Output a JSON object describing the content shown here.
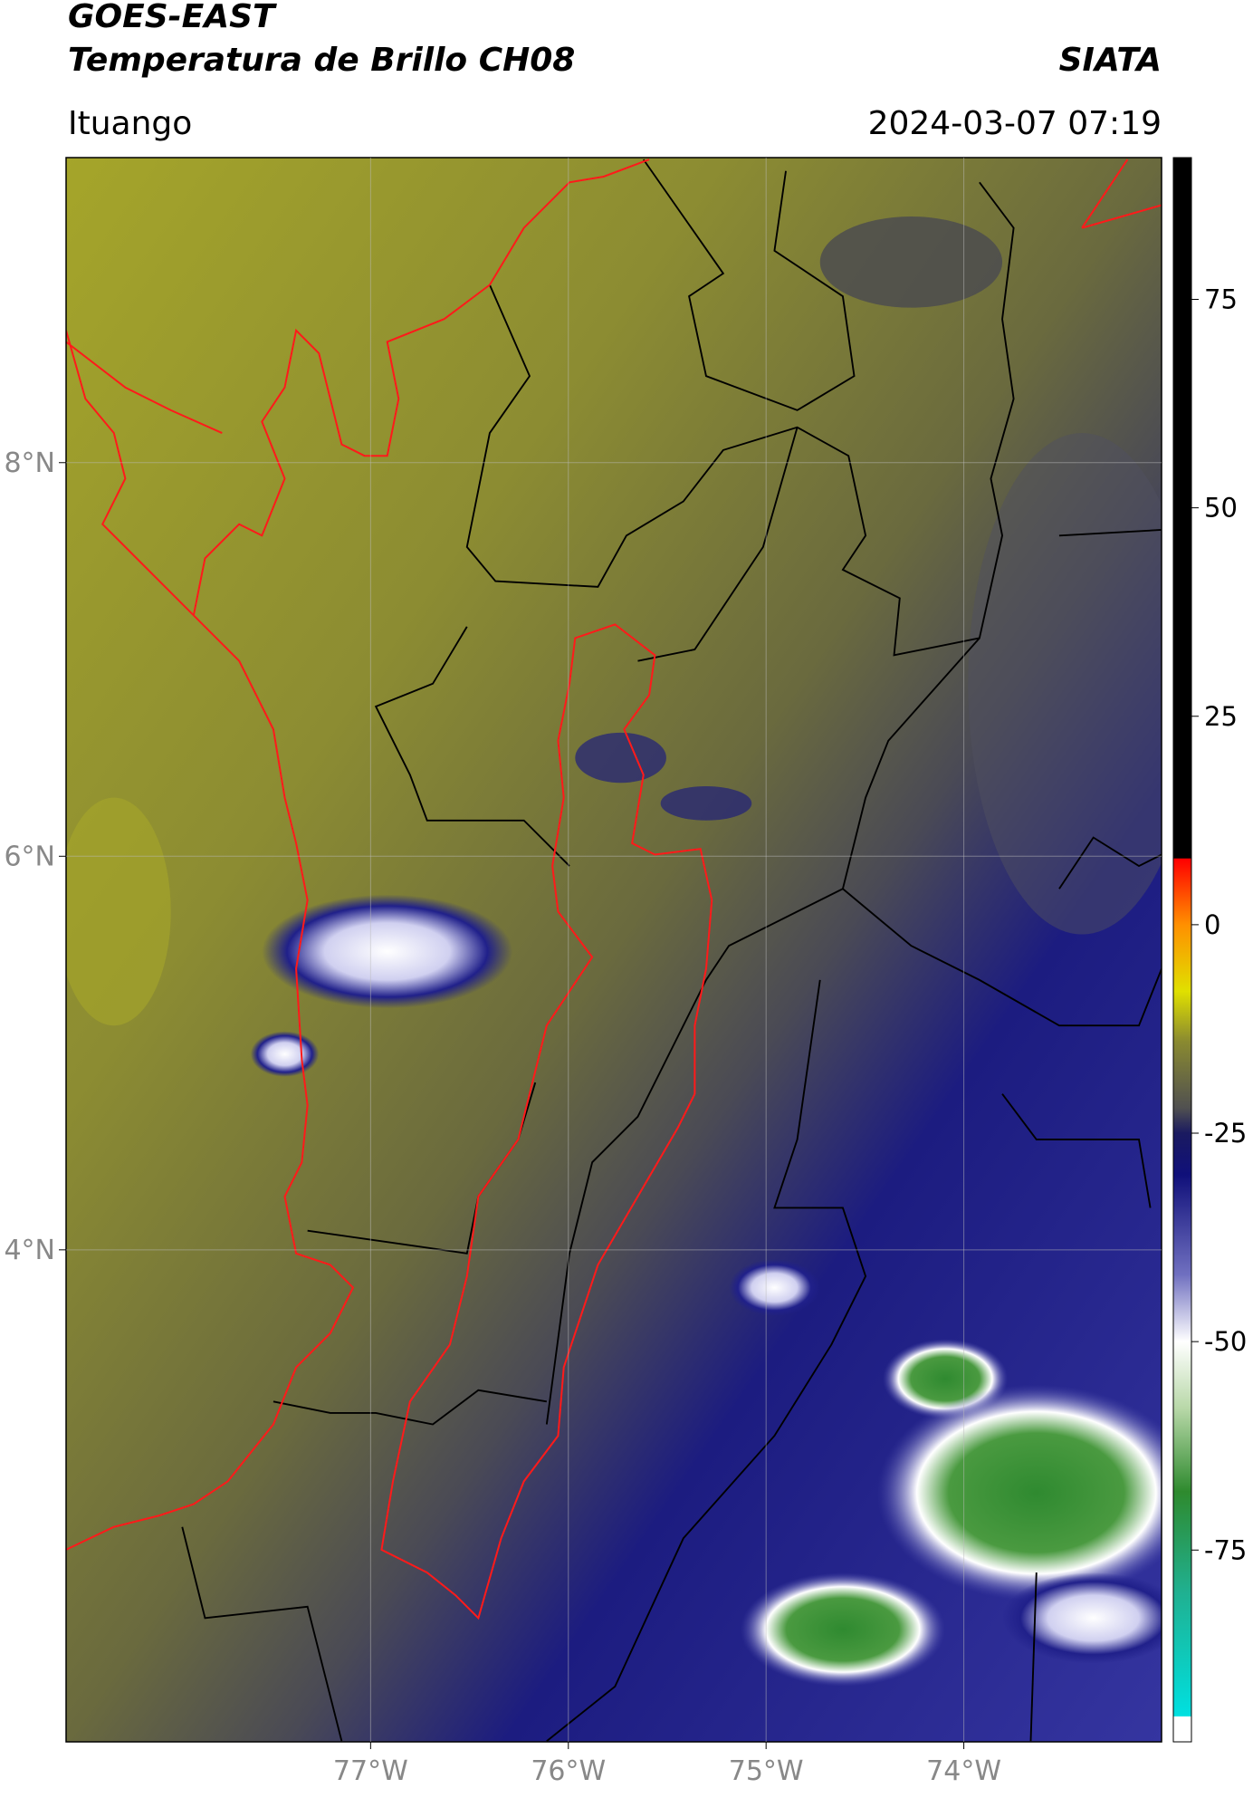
{
  "header": {
    "title": "GOES-EAST",
    "subtitle": "Temperatura de Brillo CH08",
    "brand": "SIATA",
    "location": "Ituango",
    "datetime": "2024-03-07 07:19"
  },
  "map": {
    "xlim": [
      -78.54,
      -73.0
    ],
    "ylim": [
      1.5,
      9.55
    ],
    "lat_ticks": [
      {
        "value": 8,
        "label": "8°N"
      },
      {
        "value": 6,
        "label": "6°N"
      },
      {
        "value": 4,
        "label": "4°N"
      }
    ],
    "lon_ticks": [
      {
        "value": -77,
        "label": "77°W"
      },
      {
        "value": -76,
        "label": "76°W"
      },
      {
        "value": -75,
        "label": "75°W"
      },
      {
        "value": -74,
        "label": "74°W"
      }
    ]
  },
  "colorbar": {
    "lim": [
      -98,
      92
    ],
    "ticks": [
      75,
      50,
      25,
      0,
      -25,
      -50,
      -75
    ],
    "colormap": [
      {
        "value": -98,
        "color": "#ffffff"
      },
      {
        "value": -95,
        "color": "#ffffff"
      },
      {
        "value": -94.9,
        "color": "#00e0e0"
      },
      {
        "value": -80,
        "color": "#20b090"
      },
      {
        "value": -68,
        "color": "#2e8a2e"
      },
      {
        "value": -58,
        "color": "#b8d8a8"
      },
      {
        "value": -50,
        "color": "#ffffff"
      },
      {
        "value": -42,
        "color": "#7070c0"
      },
      {
        "value": -30,
        "color": "#10107a"
      },
      {
        "value": -25,
        "color": "#1a1a60"
      },
      {
        "value": -22,
        "color": "#505050"
      },
      {
        "value": -14,
        "color": "#8a8a30"
      },
      {
        "value": -8,
        "color": "#e0e000"
      },
      {
        "value": 0,
        "color": "#ff9000"
      },
      {
        "value": 7.9,
        "color": "#ff0000"
      },
      {
        "value": 8,
        "color": "#000000"
      },
      {
        "value": 92,
        "color": "#000000"
      }
    ]
  }
}
